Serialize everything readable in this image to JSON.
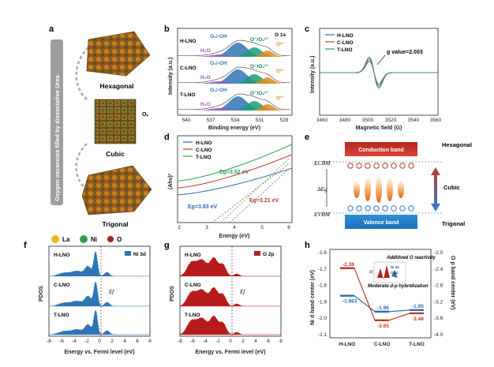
{
  "colors": {
    "h": "#2b6cb0",
    "c": "#c0392b",
    "t": "#2e9e4f",
    "blue_fill": "#2f74b5",
    "red_fill": "#b71c1c",
    "orange": "#e08a1e",
    "purple": "#8e44ad",
    "green_peak": "#1b7f5a"
  },
  "panel_a": {
    "letter": "a",
    "arrow_text": "Oxygen vacancies filled by dissociative Urea",
    "structures": [
      "Hexagonal",
      "Cubic",
      "Trigonal"
    ],
    "ov_label": "Oᵥ",
    "legend": [
      "La",
      "Ni",
      "O"
    ]
  },
  "panel_b": {
    "letter": "b",
    "title": "O 1s",
    "ylabel": "Intensity (a.u.)",
    "xlabel": "Binding energy (eV)",
    "xticks": [
      "540",
      "537",
      "534",
      "531",
      "528"
    ],
    "samples": [
      "H-LNO",
      "C-LNO",
      "T-LNO"
    ],
    "peaks": [
      "O₂/-OH",
      "O⁻/O₂²⁻",
      "O²⁻",
      "H₂O"
    ]
  },
  "panel_c": {
    "letter": "c",
    "ylabel": "Intensity (a.u.)",
    "xlabel": "Magnetic field (G)",
    "xticks": [
      "3460",
      "3480",
      "3500",
      "3520",
      "3540",
      "3560"
    ],
    "legend": [
      "H-LNO",
      "C-LNO",
      "T-LNO"
    ],
    "annotation": "g value=2.003"
  },
  "panel_d": {
    "letter": "d",
    "ylabel": "(Ahν)²",
    "xlabel": "Energy (eV)",
    "xticks": [
      "2",
      "3",
      "4",
      "5",
      "6"
    ],
    "legend": [
      "H-LNO",
      "C-LNO",
      "T-LNO"
    ],
    "eg_t": "Eg=3.52 eV",
    "eg_h": "Eg=3.83 eV",
    "eg_c": "Eg=3.21 eV"
  },
  "panel_e": {
    "letter": "e",
    "conduction": "Conduction band",
    "valence": "Valence band",
    "ecbm": "ECBM",
    "evbm": "EVBM",
    "deg": "ΔEg",
    "hex": "Hexagonal",
    "cubic": "Cubic",
    "trig": "Trigonal"
  },
  "panel_f": {
    "letter": "f",
    "ylabel": "PDOS",
    "xlabel": "Energy vs. Fermi level (eV)",
    "xticks": [
      "-8",
      "-6",
      "-4",
      "-2",
      "0",
      "2",
      "4",
      "6",
      "8"
    ],
    "samples": [
      "H-LNO",
      "C-LNO",
      "T-LNO"
    ],
    "legend": "Ni 3d",
    "ef": "Ef"
  },
  "panel_g": {
    "letter": "g",
    "ylabel": "PDOS",
    "xlabel": "Energy vs. Fermi level (eV)",
    "xticks": [
      "-8",
      "-6",
      "-4",
      "-2",
      "0",
      "2",
      "4",
      "6",
      "8"
    ],
    "samples": [
      "H-LNO",
      "C-LNO",
      "T-LNO"
    ],
    "legend": "O 2p",
    "ef": "Ef"
  },
  "panel_h": {
    "letter": "h",
    "ylabel_left": "Ni d band center (eV)",
    "ylabel_right": "O p band center (eV)",
    "yticks_left": [
      "-1.6",
      "-1.7",
      "-1.8",
      "-1.9",
      "-2.0",
      "-2.1"
    ],
    "yticks_right": [
      "-2.0",
      "-2.4",
      "-2.8",
      "-3.2",
      "-3.6",
      "-4.0"
    ],
    "xticks": [
      "H-LNO",
      "C-LNO",
      "T-LNO"
    ],
    "ni_values": [
      "-1.863",
      "-1.96",
      "-1.95"
    ],
    "o_values": [
      "-2.38",
      "-3.65",
      "-3.48"
    ],
    "note1": "Additived O reactivity",
    "note2": "Moderate d-p hybridization",
    "inset_labels": [
      "Ef",
      "Ni 3d",
      "O 2p"
    ]
  },
  "chart_data": [
    {
      "type": "line",
      "panel": "d",
      "xlabel": "Energy (eV)",
      "ylabel": "(Ahν)²",
      "xlim": [
        2,
        6
      ],
      "series": [
        {
          "name": "H-LNO",
          "bandgap": 3.83
        },
        {
          "name": "C-LNO",
          "bandgap": 3.21
        },
        {
          "name": "T-LNO",
          "bandgap": 3.52
        }
      ]
    },
    {
      "type": "line",
      "panel": "h",
      "categories": [
        "H-LNO",
        "C-LNO",
        "T-LNO"
      ],
      "series": [
        {
          "values": [
            -1.863,
            -1.96,
            -1.95
          ]
        },
        {
          "values": [
            -2.38,
            -3.65,
            -3.48
          ]
        }
      ]
    }
  ]
}
